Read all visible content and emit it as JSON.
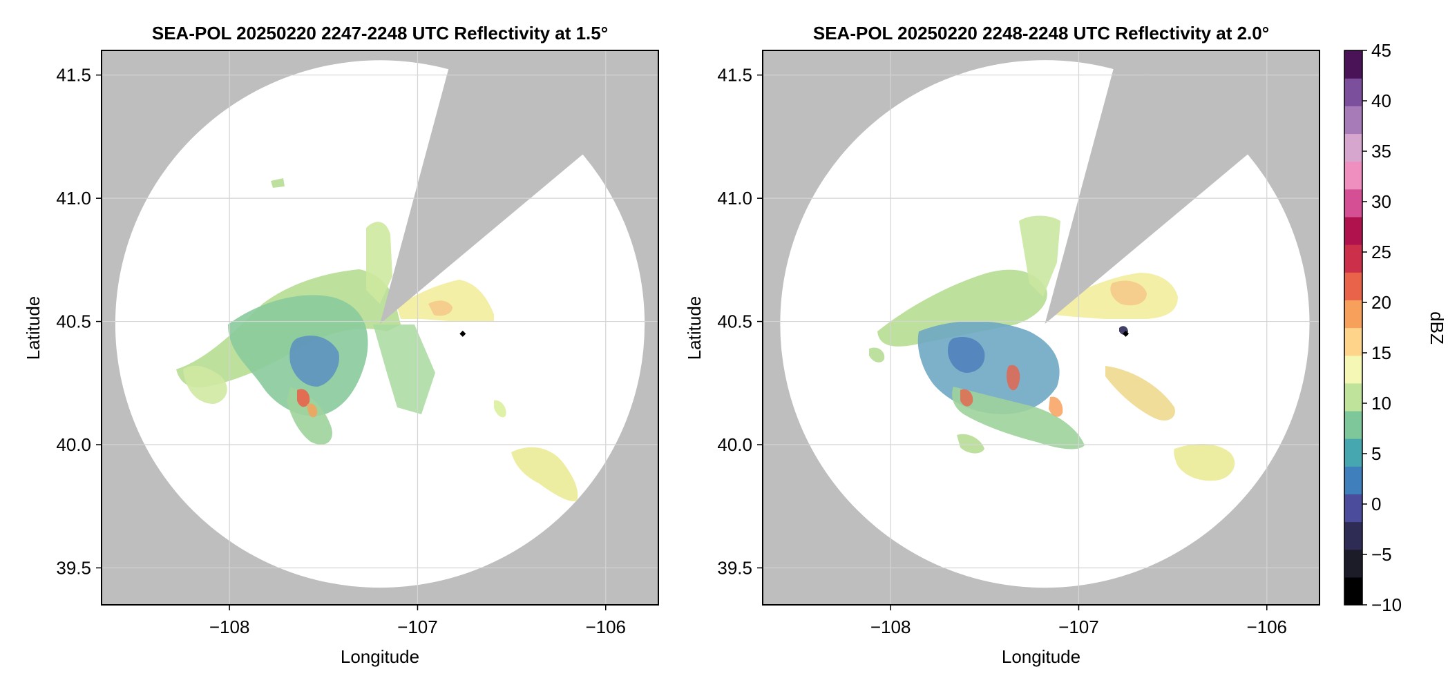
{
  "chart_data": [
    {
      "type": "heatmap",
      "title": "SEA-POL 20250220 2247-2248 UTC Reflectivity at 1.5°",
      "xlabel": "Longitude",
      "ylabel": "Latitude",
      "xlim": [
        -108.68,
        -105.72
      ],
      "ylim": [
        39.35,
        41.6
      ],
      "xticks": [
        -108,
        -107,
        -106
      ],
      "xtick_labels": [
        "−108",
        "−107",
        "−106"
      ],
      "yticks": [
        39.5,
        40.0,
        40.5,
        41.0,
        41.5
      ],
      "ytick_labels": [
        "39.5",
        "40.0",
        "40.5",
        "41.0",
        "41.5"
      ],
      "radar_site": [
        -107.2,
        40.49
      ],
      "marker": [
        -106.76,
        40.45
      ],
      "sweep_radius_deg_lat": 1.07,
      "blocked_sector_bearing_deg": [
        15,
        50
      ],
      "grid": true
    },
    {
      "type": "heatmap",
      "title": "SEA-POL 20250220 2248-2248 UTC Reflectivity at 2.0°",
      "xlabel": "Longitude",
      "ylabel": "Latitude",
      "xlim": [
        -108.68,
        -105.72
      ],
      "ylim": [
        39.35,
        41.6
      ],
      "xticks": [
        -108,
        -107,
        -106
      ],
      "xtick_labels": [
        "−108",
        "−107",
        "−106"
      ],
      "yticks": [
        39.5,
        40.0,
        40.5,
        41.0,
        41.5
      ],
      "ytick_labels": [
        "39.5",
        "40.0",
        "40.5",
        "41.0",
        "41.5"
      ],
      "radar_site": [
        -107.18,
        40.49
      ],
      "marker": [
        -106.75,
        40.45
      ],
      "sweep_radius_deg_lat": 1.07,
      "blocked_sector_bearing_deg": [
        15,
        50
      ],
      "grid": true
    }
  ],
  "colorbar": {
    "label": "dBZ",
    "min": -10,
    "max": 45,
    "ticks": [
      -10,
      -5,
      0,
      5,
      10,
      15,
      20,
      25,
      30,
      35,
      40,
      45
    ],
    "tick_labels": [
      "−10",
      "−5",
      "0",
      "5",
      "10",
      "15",
      "20",
      "25",
      "30",
      "35",
      "40",
      "45"
    ],
    "colors": [
      "#000000",
      "#1c1c28",
      "#2e2b55",
      "#4b4d9c",
      "#3f7fbc",
      "#46a7b0",
      "#7dc79a",
      "#bfe39a",
      "#f5f7b4",
      "#fdd48a",
      "#f7a05c",
      "#e8634a",
      "#cc2f4a",
      "#b0124e",
      "#d44f93",
      "#ee8fc0",
      "#d7a6cf",
      "#a77bb8",
      "#7c4f9c",
      "#4a1257"
    ]
  },
  "colors": {
    "no_coverage": "#bebebe",
    "sweep_background": "#ffffff",
    "gridline": "#d4d4d4"
  }
}
